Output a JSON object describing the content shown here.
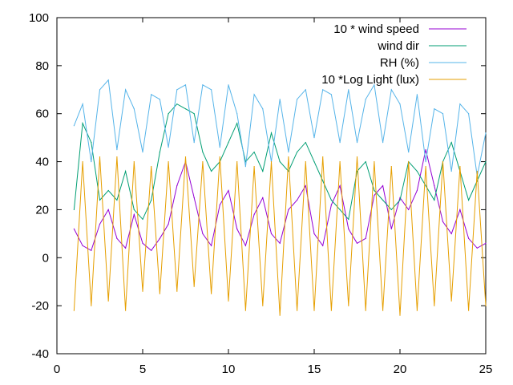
{
  "chart_data": {
    "type": "line",
    "title": "",
    "xlabel": "",
    "ylabel": "",
    "xlim": [
      0,
      25
    ],
    "ylim": [
      -40,
      100
    ],
    "xticks": [
      0,
      5,
      10,
      15,
      20,
      25
    ],
    "yticks": [
      -40,
      -20,
      0,
      20,
      40,
      60,
      80,
      100
    ],
    "xtick_labels": [
      "0",
      "5",
      "10",
      "15",
      "20",
      "25"
    ],
    "ytick_labels": [
      "-40",
      "-20",
      "0",
      "20",
      "40",
      "60",
      "80",
      "100"
    ],
    "grid": false,
    "legend_position": "top-right",
    "x_range_of_data": [
      1,
      25
    ],
    "series": [
      {
        "name": "10 * wind speed",
        "color": "#9400d3",
        "x": [
          1,
          1.5,
          2,
          2.5,
          3,
          3.5,
          4,
          4.5,
          5,
          5.5,
          6,
          6.5,
          7,
          7.5,
          8,
          8.5,
          9,
          9.5,
          10,
          10.5,
          11,
          11.5,
          12,
          12.5,
          13,
          13.5,
          14,
          14.5,
          15,
          15.5,
          16,
          16.5,
          17,
          17.5,
          18,
          18.5,
          19,
          19.5,
          20,
          20.5,
          21,
          21.5,
          22,
          22.5,
          23,
          23.5,
          24,
          24.5,
          25
        ],
        "values": [
          12,
          5,
          3,
          14,
          20,
          8,
          4,
          18,
          6,
          3,
          8,
          14,
          30,
          40,
          25,
          10,
          5,
          22,
          28,
          12,
          5,
          18,
          25,
          10,
          6,
          20,
          24,
          30,
          10,
          5,
          22,
          30,
          12,
          6,
          8,
          26,
          30,
          12,
          25,
          20,
          28,
          45,
          30,
          15,
          10,
          20,
          8,
          4,
          6
        ]
      },
      {
        "name": "wind dir",
        "color": "#009e73",
        "x": [
          1,
          1.5,
          2,
          2.5,
          3,
          3.5,
          4,
          4.5,
          5,
          5.5,
          6,
          6.5,
          7,
          7.5,
          8,
          8.5,
          9,
          9.5,
          10,
          10.5,
          11,
          11.5,
          12,
          12.5,
          13,
          13.5,
          14,
          14.5,
          15,
          15.5,
          16,
          16.5,
          17,
          17.5,
          18,
          18.5,
          19,
          19.5,
          20,
          20.5,
          21,
          21.5,
          22,
          22.5,
          23,
          23.5,
          24,
          24.5,
          25
        ],
        "values": [
          20,
          56,
          48,
          24,
          28,
          24,
          36,
          20,
          16,
          24,
          44,
          60,
          64,
          62,
          60,
          44,
          36,
          40,
          48,
          56,
          40,
          44,
          36,
          52,
          40,
          36,
          44,
          48,
          40,
          32,
          24,
          20,
          16,
          36,
          40,
          28,
          24,
          20,
          24,
          40,
          36,
          30,
          24,
          40,
          48,
          36,
          24,
          32,
          40
        ]
      },
      {
        "name": "RH (%)",
        "color": "#56b4e9",
        "x": [
          1,
          1.5,
          2,
          2.5,
          3,
          3.5,
          4,
          4.5,
          5,
          5.5,
          6,
          6.5,
          7,
          7.5,
          8,
          8.5,
          9,
          9.5,
          10,
          10.5,
          11,
          11.5,
          12,
          12.5,
          13,
          13.5,
          14,
          14.5,
          15,
          15.5,
          16,
          16.5,
          17,
          17.5,
          18,
          18.5,
          19,
          19.5,
          20,
          20.5,
          21,
          21.5,
          22,
          22.5,
          23,
          23.5,
          24,
          24.5,
          25
        ],
        "values": [
          55,
          64,
          40,
          70,
          74,
          45,
          70,
          62,
          44,
          68,
          66,
          46,
          70,
          72,
          48,
          72,
          70,
          46,
          72,
          60,
          38,
          68,
          62,
          40,
          66,
          44,
          66,
          70,
          50,
          70,
          68,
          48,
          70,
          48,
          66,
          72,
          48,
          70,
          64,
          44,
          68,
          40,
          62,
          60,
          36,
          64,
          60,
          34,
          52
        ]
      },
      {
        "name": "10 *Log Light (lux)",
        "color": "#e69f00",
        "x": [
          1,
          1.5,
          2,
          2.5,
          3,
          3.5,
          4,
          4.5,
          5,
          5.5,
          6,
          6.5,
          7,
          7.5,
          8,
          8.5,
          9,
          9.5,
          10,
          10.5,
          11,
          11.5,
          12,
          12.5,
          13,
          13.5,
          14,
          14.5,
          15,
          15.5,
          16,
          16.5,
          17,
          17.5,
          18,
          18.5,
          19,
          19.5,
          20,
          20.5,
          21,
          21.5,
          22,
          22.5,
          23,
          23.5,
          24,
          24.5,
          25
        ],
        "values": [
          -22,
          40,
          -20,
          42,
          -18,
          42,
          -22,
          40,
          -14,
          38,
          -15,
          40,
          -14,
          42,
          -12,
          40,
          -15,
          42,
          -18,
          40,
          -22,
          38,
          -20,
          40,
          -24,
          42,
          -22,
          40,
          -22,
          42,
          -22,
          40,
          -20,
          42,
          -22,
          40,
          -22,
          38,
          -24,
          40,
          -22,
          38,
          -20,
          40,
          -18,
          38,
          -22,
          36,
          -20
        ]
      }
    ]
  }
}
